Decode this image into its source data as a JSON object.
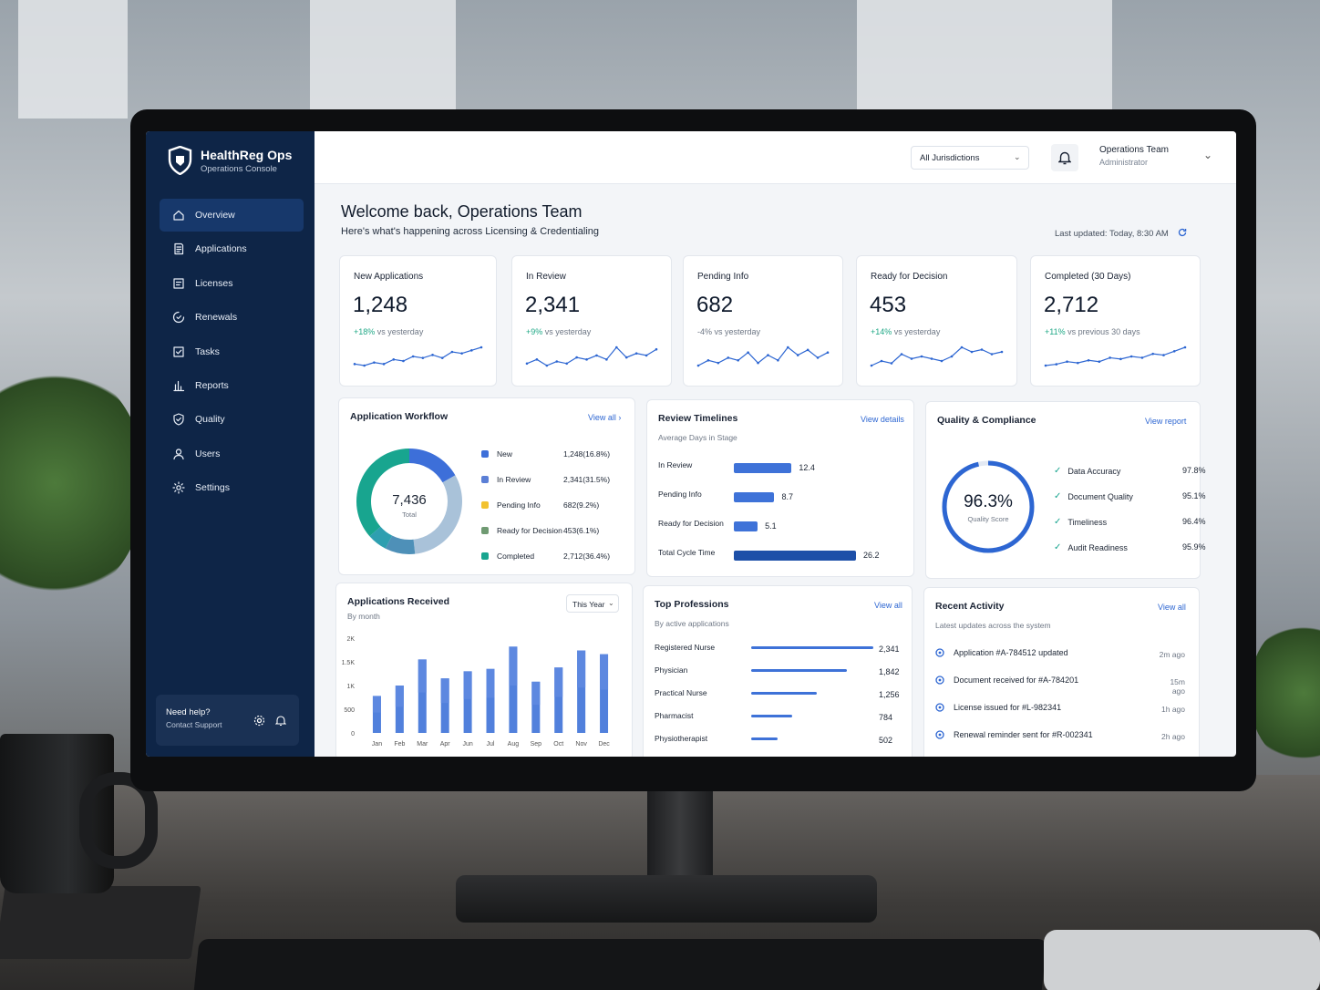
{
  "sidebar": {
    "brand_title": "HealthReg Ops",
    "brand_subtitle": "Operations Console",
    "items": [
      {
        "label": "Overview",
        "icon": "home-icon"
      },
      {
        "label": "Applications",
        "icon": "document-icon"
      },
      {
        "label": "Licenses",
        "icon": "license-icon"
      },
      {
        "label": "Renewals",
        "icon": "renew-icon"
      },
      {
        "label": "Tasks",
        "icon": "checkbox-icon"
      },
      {
        "label": "Reports",
        "icon": "bar-chart-icon"
      },
      {
        "label": "Quality",
        "icon": "shield-check-icon"
      },
      {
        "label": "Users",
        "icon": "user-icon"
      },
      {
        "label": "Settings",
        "icon": "gear-icon"
      }
    ],
    "active": "Overview",
    "help_title": "Need help?",
    "help_link": "Contact Support"
  },
  "topbar": {
    "jurisdiction": "All Jurisdictions",
    "user_name": "Operations Team",
    "user_role": "Administrator"
  },
  "header": {
    "welcome": "Welcome back, Operations Team",
    "subtitle": "Here's what's happening across Licensing & Credentialing",
    "last_updated": "Last updated: Today, 8:30 AM"
  },
  "kpis": [
    {
      "label": "New Applications",
      "value": "1,248",
      "change": "+18%",
      "change_text": "vs yesterday",
      "positive": true,
      "trend": [
        5,
        4,
        6,
        5,
        8,
        7,
        10,
        9,
        11,
        9,
        13,
        12,
        14,
        16
      ]
    },
    {
      "label": "In Review",
      "value": "2,341",
      "change": "+9%",
      "change_text": "vs yesterday",
      "positive": true,
      "trend": [
        6,
        8,
        5,
        7,
        6,
        9,
        8,
        10,
        8,
        14,
        9,
        11,
        10,
        13
      ]
    },
    {
      "label": "Pending Info",
      "value": "682",
      "change": "-4%",
      "change_text": "vs yesterday",
      "positive": false,
      "trend": [
        6,
        8,
        7,
        9,
        8,
        11,
        7,
        10,
        8,
        13,
        10,
        12,
        9,
        11
      ]
    },
    {
      "label": "Ready for Decision",
      "value": "453",
      "change": "+14%",
      "change_text": "vs yesterday",
      "positive": true,
      "trend": [
        4,
        6,
        5,
        9,
        7,
        8,
        7,
        6,
        8,
        12,
        10,
        11,
        9,
        10
      ]
    },
    {
      "label": "Completed (30 Days)",
      "value": "2,712",
      "change": "+11%",
      "change_text": "vs previous 30 days",
      "positive": true,
      "trend": [
        3,
        4,
        6,
        5,
        7,
        6,
        9,
        8,
        10,
        9,
        12,
        11,
        14,
        17
      ]
    }
  ],
  "workflow": {
    "title": "Application Workflow",
    "link": "View all",
    "total": "7,436",
    "total_label": "Total",
    "items": [
      {
        "name": "New",
        "value": 1248,
        "label": "1,248",
        "pct": "(16.8%)",
        "color": "#3d6fd9"
      },
      {
        "name": "In Review",
        "value": 2341,
        "label": "2,341",
        "pct": "(31.5%)",
        "color": "#a9c2d9"
      },
      {
        "name": "Pending Info",
        "value": 682,
        "label": "682",
        "pct": "(9.2%)",
        "color": "#4e90b8"
      },
      {
        "name": "Ready for Decision",
        "value": 453,
        "label": "453",
        "pct": "(6.1%)",
        "color": "#2e9fb0"
      },
      {
        "name": "Completed",
        "value": 2712,
        "label": "2,712",
        "pct": "(36.4%)",
        "color": "#18a58f"
      }
    ],
    "legend_colors": [
      "#3d6fd9",
      "#5b7fd6",
      "#f2c230",
      "#6f9a72",
      "#18a58f"
    ]
  },
  "timelines": {
    "title": "Review Timelines",
    "link": "View details",
    "subtitle": "Average Days in Stage",
    "rows": [
      {
        "label": "In Review",
        "value": 12.4
      },
      {
        "label": "Pending Info",
        "value": 8.7
      },
      {
        "label": "Ready for Decision",
        "value": 5.1
      },
      {
        "label": "Total Cycle Time",
        "value": 26.2
      }
    ]
  },
  "quality": {
    "title": "Quality & Compliance",
    "link": "View report",
    "score": "96.3%",
    "score_value": 96.3,
    "score_label": "Quality Score",
    "items": [
      {
        "label": "Data Accuracy",
        "value": "97.8%"
      },
      {
        "label": "Document Quality",
        "value": "95.1%"
      },
      {
        "label": "Timeliness",
        "value": "96.4%"
      },
      {
        "label": "Audit Readiness",
        "value": "95.9%"
      }
    ]
  },
  "received": {
    "title": "Applications Received",
    "subtitle": "By month",
    "period": "This Year",
    "chart_data": {
      "type": "bar",
      "categories": [
        "Jan",
        "Feb",
        "Mar",
        "Apr",
        "Jun",
        "Jul",
        "Aug",
        "Sep",
        "Oct",
        "Nov",
        "Dec"
      ],
      "values": [
        780,
        1000,
        1550,
        1150,
        1300,
        1350,
        1820,
        1080,
        1380,
        1740,
        1660
      ],
      "yticks": [
        "0",
        "500",
        "1K",
        "1.5K",
        "2K"
      ],
      "ylim": [
        0,
        2000
      ]
    }
  },
  "professions": {
    "title": "Top Professions",
    "subtitle": "By active applications",
    "link": "View all",
    "rows": [
      {
        "label": "Registered Nurse",
        "value": 2341,
        "display": "2,341"
      },
      {
        "label": "Physician",
        "value": 1842,
        "display": "1,842"
      },
      {
        "label": "Practical Nurse",
        "value": 1256,
        "display": "1,256"
      },
      {
        "label": "Pharmacist",
        "value": 784,
        "display": "784"
      },
      {
        "label": "Physiotherapist",
        "value": 502,
        "display": "502"
      }
    ]
  },
  "activity": {
    "title": "Recent Activity",
    "subtitle": "Latest updates across the system",
    "link": "View all",
    "items": [
      {
        "text": "Application #A-784512 updated",
        "ago": "2m ago"
      },
      {
        "text": "Document received for #A-784201",
        "ago": "15m ago"
      },
      {
        "text": "License issued for #L-982341",
        "ago": "1h ago"
      },
      {
        "text": "Renewal reminder sent for #R-002341",
        "ago": "2h ago"
      }
    ]
  }
}
